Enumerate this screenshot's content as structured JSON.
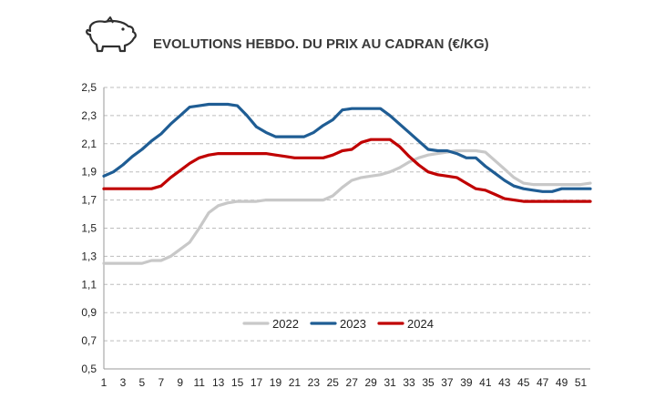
{
  "header": {
    "icon": "pig-icon",
    "title": "EVOLUTIONS HEBDO. DU PRIX AU CADRAN (€/KG)"
  },
  "chart_data": {
    "type": "line",
    "title": "EVOLUTIONS HEBDO. DU PRIX AU CADRAN (€/KG)",
    "xlabel": "",
    "ylabel": "",
    "ylim": [
      0.5,
      2.5
    ],
    "xlim": [
      1,
      52
    ],
    "yticks": [
      "0,5",
      "0,7",
      "0,9",
      "1,1",
      "1,3",
      "1,5",
      "1,7",
      "1,9",
      "2,1",
      "2,3",
      "2,5"
    ],
    "ytick_values": [
      0.5,
      0.7,
      0.9,
      1.1,
      1.3,
      1.5,
      1.7,
      1.9,
      2.1,
      2.3,
      2.5
    ],
    "xticks": [
      1,
      3,
      5,
      7,
      9,
      11,
      13,
      15,
      17,
      19,
      21,
      23,
      25,
      27,
      29,
      31,
      33,
      35,
      37,
      39,
      41,
      43,
      45,
      47,
      49,
      51
    ],
    "grid": "horizontal-dashed",
    "legend_position": "bottom-center",
    "x": [
      1,
      2,
      3,
      4,
      5,
      6,
      7,
      8,
      9,
      10,
      11,
      12,
      13,
      14,
      15,
      16,
      17,
      18,
      19,
      20,
      21,
      22,
      23,
      24,
      25,
      26,
      27,
      28,
      29,
      30,
      31,
      32,
      33,
      34,
      35,
      36,
      37,
      38,
      39,
      40,
      41,
      42,
      43,
      44,
      45,
      46,
      47,
      48,
      49,
      50,
      51,
      52
    ],
    "series": [
      {
        "name": "2022",
        "color": "#c8c8c8",
        "values": [
          1.25,
          1.25,
          1.25,
          1.25,
          1.25,
          1.27,
          1.27,
          1.3,
          1.35,
          1.4,
          1.5,
          1.61,
          1.66,
          1.68,
          1.69,
          1.69,
          1.69,
          1.7,
          1.7,
          1.7,
          1.7,
          1.7,
          1.7,
          1.7,
          1.73,
          1.79,
          1.84,
          1.86,
          1.87,
          1.88,
          1.9,
          1.93,
          1.97,
          2.0,
          2.02,
          2.03,
          2.04,
          2.05,
          2.05,
          2.05,
          2.04,
          1.98,
          1.92,
          1.86,
          1.82,
          1.81,
          1.81,
          1.81,
          1.81,
          1.81,
          1.81,
          1.82
        ]
      },
      {
        "name": "2023",
        "color": "#1f5d94",
        "values": [
          1.87,
          1.9,
          1.95,
          2.01,
          2.06,
          2.12,
          2.17,
          2.24,
          2.3,
          2.36,
          2.37,
          2.38,
          2.38,
          2.38,
          2.37,
          2.3,
          2.22,
          2.18,
          2.15,
          2.15,
          2.15,
          2.15,
          2.18,
          2.23,
          2.27,
          2.34,
          2.35,
          2.35,
          2.35,
          2.35,
          2.3,
          2.24,
          2.18,
          2.12,
          2.06,
          2.05,
          2.05,
          2.03,
          2.0,
          2.0,
          1.94,
          1.89,
          1.84,
          1.8,
          1.78,
          1.77,
          1.76,
          1.76,
          1.78,
          1.78,
          1.78,
          1.78
        ]
      },
      {
        "name": "2024",
        "color": "#c00000",
        "values": [
          1.78,
          1.78,
          1.78,
          1.78,
          1.78,
          1.78,
          1.8,
          1.86,
          1.91,
          1.96,
          2.0,
          2.02,
          2.03,
          2.03,
          2.03,
          2.03,
          2.03,
          2.03,
          2.02,
          2.01,
          2.0,
          2.0,
          2.0,
          2.0,
          2.02,
          2.05,
          2.06,
          2.11,
          2.13,
          2.13,
          2.13,
          2.08,
          2.01,
          1.95,
          1.9,
          1.88,
          1.87,
          1.86,
          1.82,
          1.78,
          1.77,
          1.74,
          1.71,
          1.7,
          1.69,
          1.69,
          1.69,
          1.69,
          1.69,
          1.69,
          1.69,
          1.69
        ]
      }
    ]
  }
}
